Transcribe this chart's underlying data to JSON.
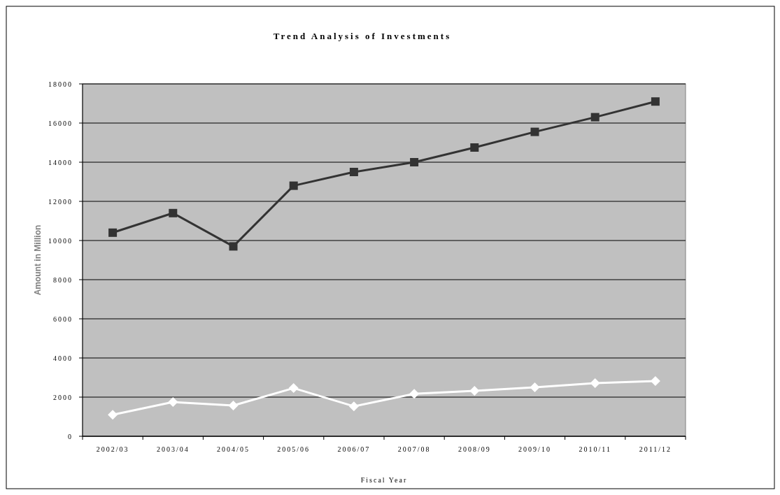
{
  "chart_data": {
    "type": "line",
    "title": "Trend Analysis of Investments",
    "xlabel": "Fiscal Year",
    "ylabel": "Amount in Million",
    "categories": [
      "2002/03",
      "2003/04",
      "2004/05",
      "2005/06",
      "2006/07",
      "2007/08",
      "2008/09",
      "2009/10",
      "2010/11",
      "2011/12"
    ],
    "series": [
      {
        "color": "#333333",
        "marker": "square",
        "values": [
          10400,
          11400,
          9700,
          12800,
          13500,
          14000,
          14750,
          15550,
          16300,
          17100
        ]
      },
      {
        "color": "#ffffff",
        "marker": "diamond",
        "values": [
          1100,
          1750,
          1570,
          2460,
          1530,
          2170,
          2320,
          2500,
          2710,
          2820
        ]
      }
    ],
    "ylim": [
      0,
      18000
    ],
    "yticks": [
      {
        "value": 0,
        "label": "0"
      },
      {
        "value": 2000,
        "label": "2000"
      },
      {
        "value": 4000,
        "label": "4000"
      },
      {
        "value": 6000,
        "label": "6000"
      },
      {
        "value": 8000,
        "label": "8000"
      },
      {
        "value": 10000,
        "label": "10000"
      },
      {
        "value": 12000,
        "label": "12000"
      },
      {
        "value": 14000,
        "label": "14000"
      },
      {
        "value": 16000,
        "label": "16000"
      },
      {
        "value": 18000,
        "label": "18000"
      }
    ],
    "grid": "y",
    "line_style": "solid"
  }
}
